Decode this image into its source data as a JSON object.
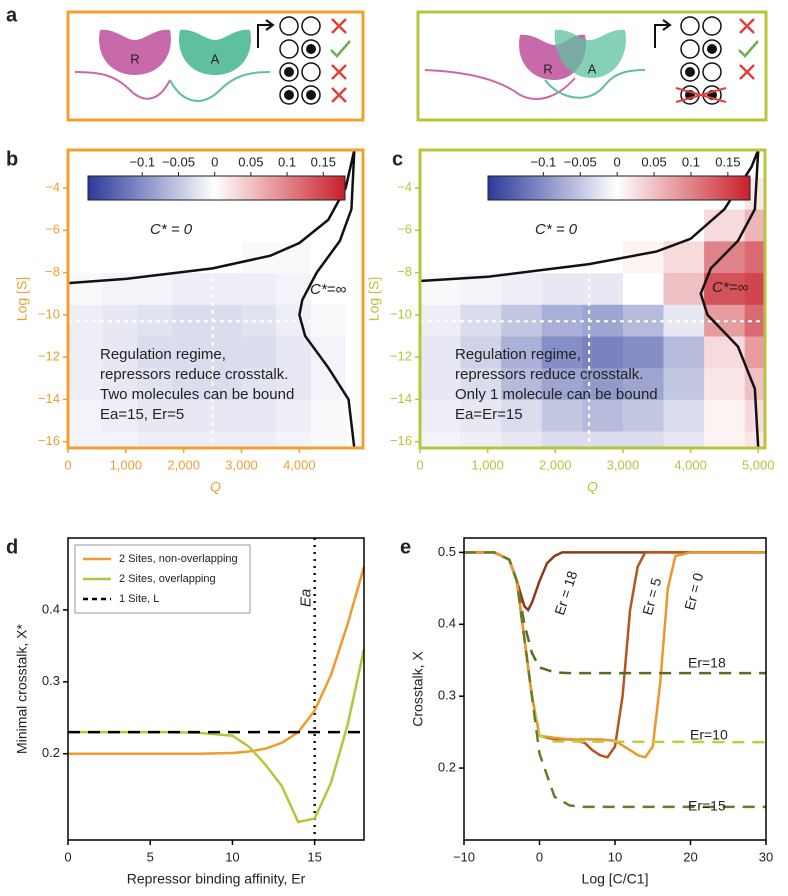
{
  "panel_labels": [
    "a",
    "b",
    "c",
    "d",
    "e"
  ],
  "diagrams": [
    {
      "labels": [
        "R",
        "A"
      ]
    },
    {
      "labels": [
        "R",
        "A"
      ]
    }
  ],
  "chart_data": [
    {
      "type": "heatmap",
      "frame_color": "#f0a030",
      "xlabel": "Q",
      "ylabel": "Log [S]",
      "xlim": [
        0,
        5100
      ],
      "ylim": [
        -16.3,
        -2.2
      ],
      "xticks": [
        0,
        {
          "value": 1000,
          "label": "1,000"
        },
        {
          "value": 2000,
          "label": "2,000"
        },
        {
          "value": 3000,
          "label": "3,000"
        },
        {
          "value": 4000,
          "label": "4,000"
        }
      ],
      "yticks": [
        {
          "value": -16,
          "label": "−16"
        },
        {
          "value": -14,
          "label": "−14"
        },
        {
          "value": -12,
          "label": "−12"
        },
        {
          "value": -10,
          "label": "−10"
        },
        {
          "value": -8,
          "label": "−8"
        },
        {
          "value": -6,
          "label": "−6"
        },
        {
          "value": -4,
          "label": "−4"
        }
      ],
      "x_edges": [
        0,
        600,
        1200,
        1800,
        2400,
        3000,
        3600,
        4200,
        4800,
        5400
      ],
      "y_edges": [
        -17,
        -15.5,
        -14,
        -12.5,
        -11,
        -9.5,
        -8,
        -6.5,
        -5,
        -3.5,
        -2
      ],
      "z": [
        [
          -0.01,
          -0.01,
          -0.015,
          -0.015,
          -0.015,
          -0.015,
          -0.01,
          -0.005,
          0
        ],
        [
          -0.01,
          -0.015,
          -0.02,
          -0.02,
          -0.02,
          -0.02,
          -0.015,
          -0.005,
          0
        ],
        [
          -0.015,
          -0.02,
          -0.025,
          -0.03,
          -0.03,
          -0.025,
          -0.02,
          -0.01,
          0
        ],
        [
          -0.015,
          -0.02,
          -0.03,
          -0.03,
          -0.03,
          -0.03,
          -0.02,
          -0.01,
          0
        ],
        [
          -0.015,
          -0.02,
          -0.025,
          -0.03,
          -0.03,
          -0.025,
          -0.015,
          -0.005,
          0
        ],
        [
          -0.005,
          -0.01,
          -0.01,
          -0.015,
          -0.015,
          -0.015,
          -0.01,
          0,
          0
        ],
        [
          0,
          0,
          0,
          0,
          0,
          -0.005,
          -0.005,
          0,
          0
        ],
        [
          0,
          0,
          0,
          0,
          0,
          0,
          0,
          0,
          0
        ],
        [
          0,
          0,
          0,
          0,
          0,
          0,
          0,
          0,
          0
        ],
        [
          0,
          0,
          0,
          0,
          0,
          0,
          0,
          0,
          0
        ]
      ],
      "colormap": [
        "#2b3a9a",
        "#ffffff",
        "#c8202a"
      ],
      "clim": [
        -0.175,
        0.18
      ],
      "colorbar_ticks": [
        {
          "value": -0.1,
          "label": "−0.1"
        },
        {
          "value": -0.05,
          "label": "−0.05"
        },
        0,
        0.05,
        0.1,
        0.15
      ],
      "contours": [
        {
          "color": "#111111",
          "x": [
            0,
            1000,
            2500,
            3500,
            4000,
            4500,
            4800,
            4950
          ],
          "y": [
            -8.5,
            -8.3,
            -7.8,
            -7.2,
            -6.6,
            -5.5,
            -4,
            -2.2
          ]
        },
        {
          "color": "#111111",
          "x": [
            4950,
            4900,
            4700,
            4300,
            4050,
            4000,
            4100,
            4500,
            4850,
            4950
          ],
          "y": [
            -2.2,
            -5,
            -6.5,
            -8,
            -9.3,
            -10,
            -11,
            -12.5,
            -14,
            -16.3
          ]
        }
      ],
      "ref_lines": {
        "x": 2500,
        "y": -10.3
      },
      "labels": [
        "C* = 0",
        "C*=∞"
      ],
      "note": [
        "Regulation regime,",
        "repressors reduce crosstalk.",
        "Two molecules can be bound",
        "Ea=15, Er=5"
      ]
    },
    {
      "type": "heatmap",
      "frame_color": "#b8c43a",
      "xlabel": "Q",
      "ylabel": "Log [S]",
      "xlim": [
        0,
        5100
      ],
      "ylim": [
        -16.3,
        -2.2
      ],
      "xticks": [
        0,
        {
          "value": 1000,
          "label": "1,000"
        },
        {
          "value": 2000,
          "label": "2,000"
        },
        {
          "value": 3000,
          "label": "3,000"
        },
        {
          "value": 4000,
          "label": "4,000"
        },
        {
          "value": 5000,
          "label": "5,000"
        }
      ],
      "yticks": [
        {
          "value": -16,
          "label": "−16"
        },
        {
          "value": -14,
          "label": "−14"
        },
        {
          "value": -12,
          "label": "−12"
        },
        {
          "value": -10,
          "label": "−10"
        },
        {
          "value": -8,
          "label": "−8"
        },
        {
          "value": -6,
          "label": "−6"
        },
        {
          "value": -4,
          "label": "−4"
        }
      ],
      "x_edges": [
        0,
        600,
        1200,
        1800,
        2400,
        3000,
        3600,
        4200,
        4800,
        5400
      ],
      "y_edges": [
        -17,
        -15.5,
        -14,
        -12.5,
        -11,
        -9.5,
        -8,
        -6.5,
        -5,
        -3.5,
        -2
      ],
      "z": [
        [
          -0.01,
          -0.015,
          -0.02,
          -0.03,
          -0.03,
          -0.03,
          -0.02,
          0.01,
          0.02
        ],
        [
          -0.015,
          -0.02,
          -0.03,
          -0.05,
          -0.06,
          -0.05,
          -0.03,
          0.01,
          0.03
        ],
        [
          -0.02,
          -0.03,
          -0.06,
          -0.08,
          -0.09,
          -0.08,
          -0.05,
          0.02,
          0.05
        ],
        [
          -0.02,
          -0.04,
          -0.07,
          -0.1,
          -0.11,
          -0.1,
          -0.06,
          0.03,
          0.08
        ],
        [
          -0.015,
          -0.03,
          -0.05,
          -0.07,
          -0.08,
          -0.06,
          -0.02,
          0.08,
          0.12
        ],
        [
          -0.005,
          -0.01,
          -0.015,
          -0.02,
          -0.02,
          0,
          0.05,
          0.14,
          0.15
        ],
        [
          0,
          0,
          0,
          0,
          0,
          0.01,
          0.03,
          0.1,
          0.12
        ],
        [
          0,
          0,
          0,
          0,
          0,
          0,
          0,
          0.03,
          0.06
        ],
        [
          0,
          0,
          0,
          0,
          0,
          0,
          0,
          0,
          0.02
        ],
        [
          0,
          0,
          0,
          0,
          0,
          0,
          0,
          0,
          0
        ]
      ],
      "colormap": [
        "#2b3a9a",
        "#ffffff",
        "#c8202a"
      ],
      "clim": [
        -0.175,
        0.18
      ],
      "colorbar_ticks": [
        {
          "value": -0.1,
          "label": "−0.1"
        },
        {
          "value": -0.05,
          "label": "−0.05"
        },
        0,
        0.05,
        0.1,
        0.15
      ],
      "contours": [
        {
          "color": "#111111",
          "x": [
            0,
            1000,
            2500,
            3500,
            4000,
            4500,
            4900,
            5000
          ],
          "y": [
            -8.4,
            -8.2,
            -7.6,
            -7,
            -6.4,
            -5,
            -3,
            -2.2
          ]
        },
        {
          "color": "#111111",
          "x": [
            5000,
            4950,
            4700,
            4300,
            4150,
            4250,
            4700,
            4950,
            5000
          ],
          "y": [
            -2.2,
            -5,
            -6.5,
            -7.8,
            -9,
            -10,
            -11.5,
            -13.5,
            -16.3
          ]
        }
      ],
      "ref_lines": {
        "x": 2500,
        "y": -10.3
      },
      "labels": [
        "C* = 0",
        "C*=∞"
      ],
      "note": [
        "Regulation regime,",
        "repressors reduce crosstalk.",
        "Only 1 molecule can be bound",
        "Ea=Er=15"
      ]
    },
    {
      "type": "line",
      "frame_color": "#000000",
      "xlabel": "Repressor binding affinity, Er",
      "ylabel": "Minimal crosstalk, X*",
      "xlim": [
        0,
        18
      ],
      "ylim": [
        0.08,
        0.5
      ],
      "xticks": [
        0,
        5,
        10,
        15
      ],
      "yticks": [
        0.2,
        0.3,
        0.4
      ],
      "legend": "upper left",
      "vline": {
        "x": 15,
        "label": "Ea"
      },
      "series": [
        {
          "name": "2 Sites, non-overlapping",
          "color": "#f39a2e",
          "style": "solid",
          "x": [
            0,
            2,
            4,
            6,
            8,
            10,
            11,
            12,
            13,
            14,
            15,
            16,
            17,
            18
          ],
          "values": [
            0.2,
            0.2,
            0.2,
            0.2,
            0.2,
            0.201,
            0.203,
            0.207,
            0.215,
            0.23,
            0.26,
            0.31,
            0.38,
            0.46
          ]
        },
        {
          "name": "2 Sites, overlapping",
          "color": "#b8c43a",
          "style": "solid",
          "x": [
            0,
            2,
            4,
            6,
            8,
            10,
            11,
            12,
            13,
            14,
            15,
            16,
            17,
            18
          ],
          "values": [
            0.23,
            0.23,
            0.23,
            0.23,
            0.229,
            0.225,
            0.21,
            0.185,
            0.155,
            0.105,
            0.11,
            0.16,
            0.24,
            0.345
          ]
        },
        {
          "name": "1 Site, L",
          "color": "#000000",
          "style": "dashed",
          "x": [
            0,
            18
          ],
          "values": [
            0.23,
            0.23
          ]
        }
      ]
    },
    {
      "type": "line",
      "frame_color": "#000000",
      "xlabel": "Log [C/C1]",
      "ylabel": "Crosstalk, X",
      "xlim": [
        -10,
        30
      ],
      "ylim": [
        0.1,
        0.52
      ],
      "xticks": [
        {
          "value": -10,
          "label": "−10"
        },
        0,
        10,
        20,
        30
      ],
      "yticks": [
        0.2,
        0.3,
        0.4,
        0.5
      ],
      "legend": "inline",
      "series": [
        {
          "name": "Er = 18",
          "color": "#8a3c1a",
          "style": "solid",
          "x": [
            -10,
            -6,
            -4,
            -3,
            -2,
            -1.5,
            -1,
            0,
            1,
            2,
            3,
            5,
            30
          ],
          "values": [
            0.5,
            0.5,
            0.49,
            0.46,
            0.425,
            0.42,
            0.43,
            0.46,
            0.485,
            0.495,
            0.5,
            0.5,
            0.5
          ]
        },
        {
          "name": "Er = 5",
          "color": "#b5541e",
          "style": "solid",
          "x": [
            -10,
            -6,
            -4,
            -3,
            -2,
            -1,
            0,
            2,
            4,
            6,
            7,
            8,
            9,
            10,
            11,
            12,
            13,
            14,
            16,
            30
          ],
          "values": [
            0.5,
            0.5,
            0.49,
            0.46,
            0.38,
            0.3,
            0.245,
            0.24,
            0.24,
            0.235,
            0.225,
            0.218,
            0.215,
            0.23,
            0.3,
            0.42,
            0.48,
            0.5,
            0.5,
            0.5
          ]
        },
        {
          "name": "Er = 0",
          "color": "#f0952a",
          "style": "solid",
          "x": [
            -10,
            -6,
            -4,
            -3,
            -2,
            -1,
            0,
            2,
            4,
            8,
            10,
            12,
            13,
            14,
            15,
            16,
            17,
            18,
            20,
            30
          ],
          "values": [
            0.5,
            0.5,
            0.49,
            0.46,
            0.38,
            0.3,
            0.245,
            0.242,
            0.24,
            0.24,
            0.238,
            0.225,
            0.218,
            0.215,
            0.23,
            0.32,
            0.45,
            0.495,
            0.5,
            0.5
          ]
        },
        {
          "name": "Er=18",
          "color": "#5a6a20",
          "style": "dashed",
          "x": [
            -10,
            -6,
            -4,
            -3,
            -2,
            -1,
            0,
            2,
            4,
            30
          ],
          "values": [
            0.5,
            0.5,
            0.49,
            0.46,
            0.4,
            0.36,
            0.34,
            0.333,
            0.332,
            0.332
          ]
        },
        {
          "name": "Er=10",
          "color": "#c2cc40",
          "style": "dashed",
          "x": [
            -10,
            -6,
            -4,
            -3,
            -2,
            -1,
            0,
            2,
            30
          ],
          "values": [
            0.5,
            0.5,
            0.49,
            0.46,
            0.38,
            0.3,
            0.245,
            0.237,
            0.236
          ]
        },
        {
          "name": "Er=15",
          "color": "#6b7a28",
          "style": "dashed",
          "x": [
            -10,
            -6,
            -4,
            -3,
            -2,
            -1,
            0,
            2,
            4,
            6,
            30
          ],
          "values": [
            0.5,
            0.5,
            0.49,
            0.46,
            0.38,
            0.3,
            0.22,
            0.16,
            0.148,
            0.146,
            0.146
          ]
        }
      ]
    }
  ]
}
